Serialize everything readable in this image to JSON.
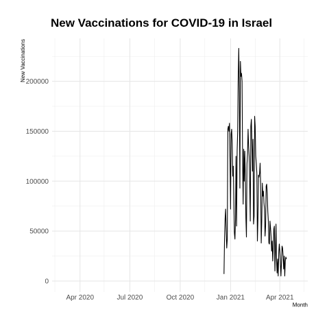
{
  "chart_data": {
    "type": "line",
    "title": "New Vaccinations for COVID-19 in Israel",
    "xlabel": "Month",
    "ylabel": "New Vaccinations",
    "x_ticks": [
      {
        "date": "2020-04-01",
        "label": "Apr 2020"
      },
      {
        "date": "2020-07-01",
        "label": "Jul 2020"
      },
      {
        "date": "2020-10-01",
        "label": "Oct 2020"
      },
      {
        "date": "2021-01-01",
        "label": "Jan 2021"
      },
      {
        "date": "2021-04-01",
        "label": "Apr 2021"
      }
    ],
    "x_minor_ticks": [
      "2020-02-15",
      "2020-05-15",
      "2020-08-15",
      "2020-11-15",
      "2021-02-15",
      "2021-05-15"
    ],
    "y_ticks": [
      0,
      50000,
      100000,
      150000,
      200000
    ],
    "y_tick_labels": [
      "0",
      "50000",
      "100000",
      "150000",
      "200000"
    ],
    "xlim": [
      "2020-02-10",
      "2021-05-22"
    ],
    "ylim": [
      -11000,
      243000
    ],
    "grid": true,
    "legend": "none",
    "series": [
      {
        "color": "#000000",
        "points": [
          [
            "2020-12-20",
            7000
          ],
          [
            "2020-12-21",
            42000
          ],
          [
            "2020-12-22",
            62000
          ],
          [
            "2020-12-23",
            72000
          ],
          [
            "2020-12-24",
            50000
          ],
          [
            "2020-12-25",
            33000
          ],
          [
            "2020-12-26",
            42000
          ],
          [
            "2020-12-27",
            152000
          ],
          [
            "2020-12-28",
            155000
          ],
          [
            "2020-12-29",
            150000
          ],
          [
            "2020-12-30",
            158000
          ],
          [
            "2020-12-31",
            120000
          ],
          [
            "2021-01-01",
            72000
          ],
          [
            "2021-01-02",
            147000
          ],
          [
            "2021-01-03",
            152000
          ],
          [
            "2021-01-04",
            138000
          ],
          [
            "2021-01-05",
            105000
          ],
          [
            "2021-01-06",
            115000
          ],
          [
            "2021-01-07",
            80000
          ],
          [
            "2021-01-08",
            48000
          ],
          [
            "2021-01-09",
            42000
          ],
          [
            "2021-01-10",
            62000
          ],
          [
            "2021-01-11",
            125000
          ],
          [
            "2021-01-12",
            55000
          ],
          [
            "2021-01-13",
            130000
          ],
          [
            "2021-01-14",
            150000
          ],
          [
            "2021-01-15",
            205000
          ],
          [
            "2021-01-16",
            233000
          ],
          [
            "2021-01-17",
            190000
          ],
          [
            "2021-01-18",
            93000
          ],
          [
            "2021-01-19",
            220000
          ],
          [
            "2021-01-20",
            205000
          ],
          [
            "2021-01-21",
            208000
          ],
          [
            "2021-01-22",
            200000
          ],
          [
            "2021-01-23",
            120000
          ],
          [
            "2021-01-24",
            77000
          ],
          [
            "2021-01-25",
            132000
          ],
          [
            "2021-01-26",
            100000
          ],
          [
            "2021-01-27",
            130000
          ],
          [
            "2021-01-28",
            105000
          ],
          [
            "2021-01-29",
            63000
          ],
          [
            "2021-01-30",
            44000
          ],
          [
            "2021-01-31",
            117000
          ],
          [
            "2021-02-01",
            128000
          ],
          [
            "2021-02-02",
            152000
          ],
          [
            "2021-02-03",
            135000
          ],
          [
            "2021-02-04",
            125000
          ],
          [
            "2021-02-05",
            96000
          ],
          [
            "2021-02-06",
            60000
          ],
          [
            "2021-02-07",
            155000
          ],
          [
            "2021-02-08",
            162000
          ],
          [
            "2021-02-09",
            140000
          ],
          [
            "2021-02-10",
            110000
          ],
          [
            "2021-02-11",
            142000
          ],
          [
            "2021-02-12",
            57000
          ],
          [
            "2021-02-13",
            65000
          ],
          [
            "2021-02-14",
            165000
          ],
          [
            "2021-02-15",
            155000
          ],
          [
            "2021-02-16",
            125000
          ],
          [
            "2021-02-17",
            118000
          ],
          [
            "2021-02-18",
            108000
          ],
          [
            "2021-02-19",
            40000
          ],
          [
            "2021-02-20",
            62000
          ],
          [
            "2021-02-21",
            106000
          ],
          [
            "2021-02-22",
            104000
          ],
          [
            "2021-02-23",
            108000
          ],
          [
            "2021-02-24",
            118000
          ],
          [
            "2021-02-25",
            95000
          ],
          [
            "2021-02-26",
            38000
          ],
          [
            "2021-02-27",
            60000
          ],
          [
            "2021-02-28",
            98000
          ],
          [
            "2021-03-01",
            85000
          ],
          [
            "2021-03-02",
            90000
          ],
          [
            "2021-03-03",
            78000
          ],
          [
            "2021-03-04",
            72000
          ],
          [
            "2021-03-05",
            45000
          ],
          [
            "2021-03-06",
            55000
          ],
          [
            "2021-03-07",
            95000
          ],
          [
            "2021-03-08",
            97000
          ],
          [
            "2021-03-09",
            88000
          ],
          [
            "2021-03-10",
            70000
          ],
          [
            "2021-03-11",
            60000
          ],
          [
            "2021-03-12",
            38000
          ],
          [
            "2021-03-13",
            37000
          ],
          [
            "2021-03-14",
            60000
          ],
          [
            "2021-03-15",
            53000
          ],
          [
            "2021-03-16",
            45000
          ],
          [
            "2021-03-17",
            30000
          ],
          [
            "2021-03-18",
            40000
          ],
          [
            "2021-03-19",
            20000
          ],
          [
            "2021-03-20",
            33000
          ],
          [
            "2021-03-21",
            52000
          ],
          [
            "2021-03-22",
            55000
          ],
          [
            "2021-03-23",
            10000
          ],
          [
            "2021-03-24",
            30000
          ],
          [
            "2021-03-25",
            57000
          ],
          [
            "2021-03-26",
            20000
          ],
          [
            "2021-03-27",
            8000
          ],
          [
            "2021-03-28",
            22000
          ],
          [
            "2021-03-29",
            5000
          ],
          [
            "2021-03-30",
            28000
          ],
          [
            "2021-03-31",
            37000
          ],
          [
            "2021-04-01",
            30000
          ],
          [
            "2021-04-02",
            20000
          ],
          [
            "2021-04-03",
            5000
          ],
          [
            "2021-04-04",
            18000
          ],
          [
            "2021-04-05",
            35000
          ],
          [
            "2021-04-06",
            33000
          ],
          [
            "2021-04-07",
            25000
          ],
          [
            "2021-04-08",
            12000
          ],
          [
            "2021-04-09",
            25000
          ],
          [
            "2021-04-10",
            5000
          ],
          [
            "2021-04-11",
            20000
          ],
          [
            "2021-04-12",
            24000
          ],
          [
            "2021-04-13",
            22000
          ]
        ]
      }
    ]
  }
}
